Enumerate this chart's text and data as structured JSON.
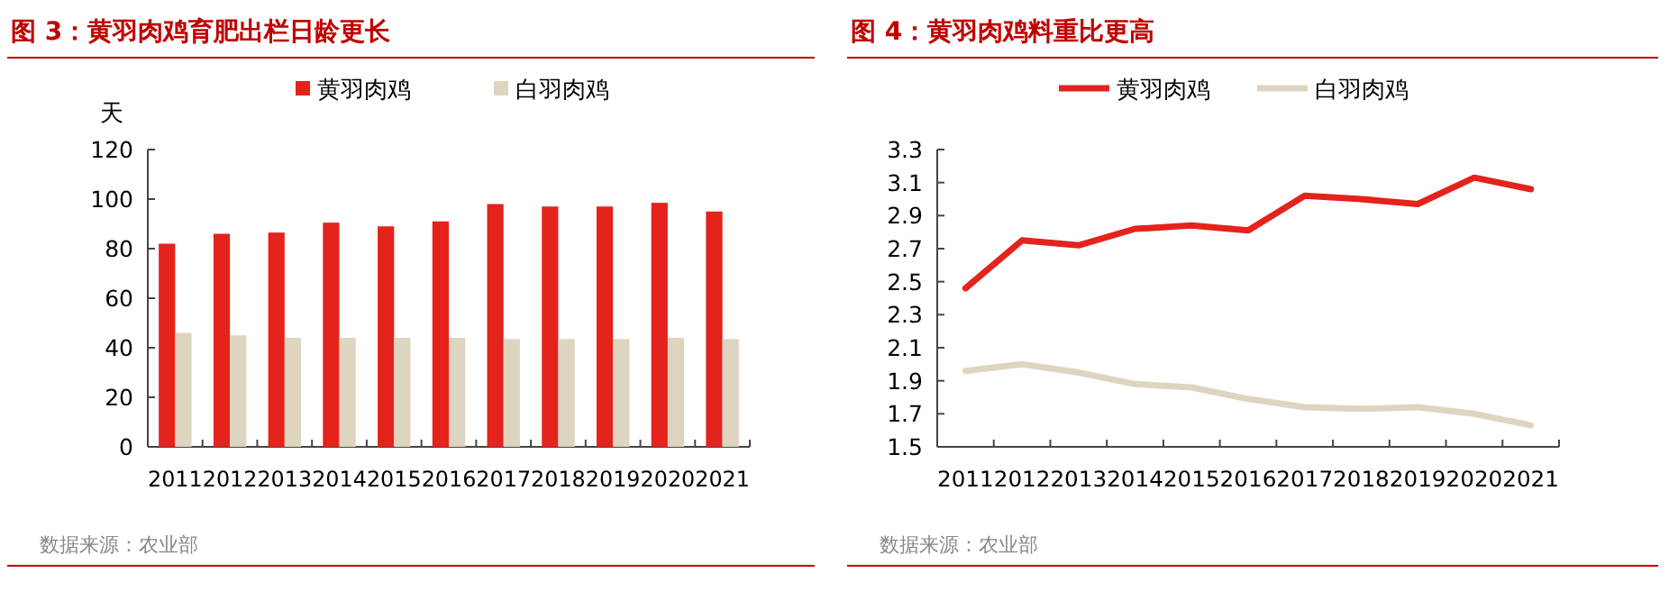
{
  "chart_data": [
    {
      "type": "bar",
      "title": "图 3：黄羽肉鸡育肥出栏日龄更长",
      "ylabel": "天",
      "categories": [
        "2011",
        "2012",
        "2013",
        "2014",
        "2015",
        "2016",
        "2017",
        "2018",
        "2019",
        "2020",
        "2021"
      ],
      "series": [
        {
          "name": "黄羽肉鸡",
          "color": "#e3231c",
          "values": [
            82,
            86,
            86.5,
            90.5,
            89,
            91,
            98,
            97,
            97,
            98.5,
            95
          ]
        },
        {
          "name": "白羽肉鸡",
          "color": "#ddd5c0",
          "values": [
            46,
            45,
            44,
            44,
            44,
            44,
            43.5,
            43.5,
            43.5,
            44,
            43.5
          ]
        }
      ],
      "ylim": [
        0,
        120
      ],
      "yticks": [
        0,
        20,
        40,
        60,
        80,
        100,
        120
      ],
      "legend": "top",
      "grid": false,
      "annotations": [
        "数据来源：农业部"
      ]
    },
    {
      "type": "line",
      "title": "图 4：黄羽肉鸡料重比更高",
      "categories": [
        "2011",
        "2012",
        "2013",
        "2014",
        "2015",
        "2016",
        "2017",
        "2018",
        "2019",
        "2020",
        "2021"
      ],
      "series": [
        {
          "name": "黄羽肉鸡",
          "color": "#e3231c",
          "values": [
            2.46,
            2.75,
            2.72,
            2.82,
            2.84,
            2.81,
            3.02,
            3.0,
            2.97,
            3.13,
            3.06
          ]
        },
        {
          "name": "白羽肉鸡",
          "color": "#ddd5c0",
          "values": [
            1.96,
            2.0,
            1.95,
            1.88,
            1.86,
            1.79,
            1.74,
            1.73,
            1.74,
            1.7,
            1.63
          ]
        }
      ],
      "ylim": [
        1.5,
        3.3
      ],
      "yticks": [
        1.5,
        1.7,
        1.9,
        2.1,
        2.3,
        2.5,
        2.7,
        2.9,
        3.1,
        3.3
      ],
      "legend": "top",
      "grid": false,
      "marker": "none",
      "line_style": "solid",
      "annotations": [
        "数据来源：农业部"
      ]
    }
  ]
}
